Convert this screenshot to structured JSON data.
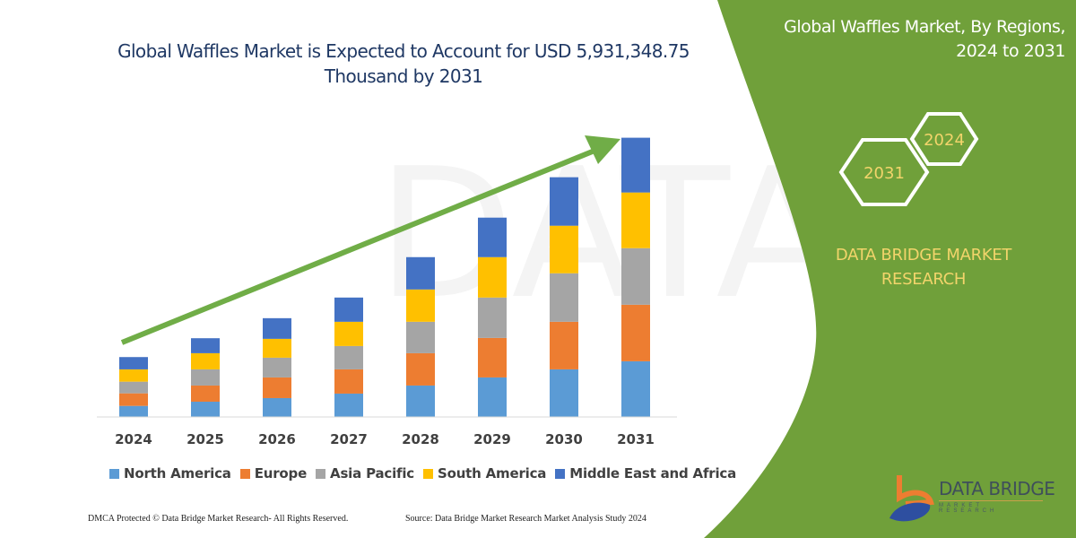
{
  "header": {
    "title_line1": "Global Waffles Market is Expected to Account for USD 5,931,348.75",
    "title_line2": "Thousand by 2031"
  },
  "side_panel": {
    "title_line1": "Global Waffles Market, By Regions,",
    "title_line2": "2024 to 2031",
    "hex_start": "2024",
    "hex_end": "2031",
    "brand_line1": "DATA BRIDGE MARKET",
    "brand_line2": "RESEARCH",
    "logo_text": "DATA BRIDGE",
    "logo_sub": "MARKET RESEARCH",
    "color": "#70a03a"
  },
  "footer": {
    "left": "DMCA Protected © Data Bridge Market Research-  All Rights Reserved.",
    "right": "Source: Data Bridge Market Research  Market Analysis Study 2024"
  },
  "chart_data": {
    "type": "bar",
    "stacked": true,
    "title": "Global Waffles Market is Expected to Account for USD 5,931,348.75 Thousand by 2031",
    "xlabel": "",
    "ylabel": "",
    "ylim": [
      0,
      6000000
    ],
    "grid": false,
    "legend_position": "bottom",
    "trend_arrow": true,
    "categories": [
      "2024",
      "2025",
      "2026",
      "2027",
      "2028",
      "2029",
      "2030",
      "2031"
    ],
    "series": [
      {
        "name": "North America",
        "color": "#5b9bd5",
        "values": [
          234600,
          324200,
          400500,
          495900,
          667500,
          839200,
          1010800,
          1182500
        ]
      },
      {
        "name": "Europe",
        "color": "#ed7d31",
        "values": [
          267000,
          343300,
          438700,
          514900,
          686600,
          839200,
          1010800,
          1201500
        ]
      },
      {
        "name": "Asia Pacific",
        "color": "#a5a5a5",
        "values": [
          247900,
          343300,
          419600,
          495900,
          667500,
          858200,
          1029900,
          1201500
        ]
      },
      {
        "name": "South America",
        "color": "#ffc000",
        "values": [
          261300,
          343300,
          400500,
          514900,
          686600,
          858200,
          1010800,
          1182500
        ]
      },
      {
        "name": "Middle East and Africa",
        "color": "#4472c4",
        "values": [
          261300,
          318500,
          438700,
          514900,
          686600,
          839200,
          1029900,
          1163349
        ]
      }
    ]
  }
}
